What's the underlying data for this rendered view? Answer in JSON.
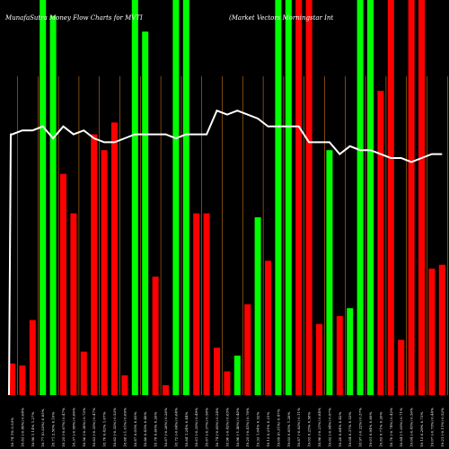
{
  "chart_data": {
    "type": "bar",
    "title": "MunafaSutra  Money Flow  Charts for MVTI",
    "subtitle": "(Market Vectors Morningstar Int",
    "background": "#000000",
    "colors": {
      "up": "#00ff00",
      "down": "#ff0000",
      "line": "#ffffff",
      "grid": "#c87814"
    },
    "ylim": [
      0,
      100
    ],
    "categories": [
      "Fri 11 Nov 2016",
      "Thu 10 Nov 2016",
      "Wed 09 Nov 2016",
      "Tue 08 Nov 2016",
      "Mon 07 Nov 2016",
      "Fri 04 Nov 2016",
      "Thu 03 Nov 2016",
      "Wed 02 Nov 2016",
      "Tue 01 Nov 2016",
      "Mon 31 Oct 2016",
      "Fri 28 Oct 2016",
      "Thu 27 Oct 2016",
      "Wed 26 Oct 2016",
      "Tue 25 Oct 2016",
      "Mon 24 Oct 2016",
      "Fri 21 Oct 2016",
      "Thu 20 Oct 2016",
      "Wed 19 Oct 2016",
      "Tue 18 Oct 2016",
      "Mon 17 Oct 2016",
      "Fri 14 Oct 2016",
      "Thu 13 Oct 2016",
      "Wed 12 Oct 2016",
      "Tue 11 Oct 2016",
      "Mon 10 Oct 2016",
      "Fri 07 Oct 2016",
      "Thu 06 Oct 2016",
      "Wed 05 Oct 2016",
      "Tue 04 Oct 2016",
      "Mon 03 Oct 2016",
      "Fri 30 Sep 2016",
      "Thu 29 Sep 2016",
      "Wed 28 Sep 2016",
      "Tue 27 Sep 2016",
      "Mon 26 Sep 2016",
      "Fri 23 Sep 2016",
      "Thu 22 Sep 2016",
      "Wed 21 Sep 2016",
      "Tue 20 Sep 2016",
      "Mon 19 Sep 2016",
      "Fri 16 Sep 2016",
      "Thu 15 Sep 2016",
      "Wed 14 Sep 2016"
    ],
    "tick_labels": [
      "18.74 1% 0.53%",
      "18.83 (-0.80%) 0.64%",
      "18.98 1.14% 1.27%",
      "18.77 (0.33%) 0.85%",
      "18.71 2.50% 0.16%",
      "18.25 (-0.67%) 0.47%",
      "18.37 (-0.99%) 0.60%",
      "18.56 (-0.38%) 0.72%",
      "18.63 (-0.35%) 0.47%",
      "18.70 0.42% 1.07%",
      "18.62 (-0.32%) 0.53%",
      "18.68 (-1.01%) 0.69%",
      "18.87 0.05% 0.85%",
      "18.86 0.43% 0.48%",
      "18.78 0.60% 0.26%",
      "18.67 (-0.26%) 0.26%",
      "18.72 (-0.64%) 0.64%",
      "18.84 1.24% 0.44%",
      "18.61 (-0.35%) 0.49%",
      "18.67 (-0.37%) 0.56%",
      "18.74 (-0.85%) 0.24%",
      "18.90 (-0.42%) 0.63%",
      "18.98 (-1.40%) 0.40%",
      "19.25 (-0.41%) 0.76%",
      "19.33 1.04% 0.52%",
      "19.13 0.21% 0.31%",
      "19.09 (0.31%) 0.47%",
      "19.03 0.85% 1.28%",
      "18.87 (-0.83%) 0.11%",
      "19.03 0.25% 0.58%",
      "18.98 (-0.21%) 0.84%",
      "19.02 (-0.94%) 0.97%",
      "19.20 0.84% 0.42%",
      "19.04 0.37% 0.53%",
      "18.97 (-0.22%) 0.37%",
      "19.01 0.94% 0.68%",
      "18.83 0.71% 0.26%",
      "18.70 (-0.74%) 0.42%",
      "18.84 (-1.05%) 0.71%",
      "19.04 (-0.45%) 0.50%",
      "19.13 0.29% 0.73%",
      "19.07 (-0.73%) 0.44%",
      "19.21 (-0.11%) 0.52%"
    ],
    "series": [
      {
        "direction": [
          "down",
          "down",
          "down",
          "up",
          "up",
          "down",
          "down",
          "down",
          "down",
          "down",
          "down",
          "down",
          "up",
          "up",
          "down",
          "down",
          "up",
          "up",
          "down",
          "down",
          "down",
          "down",
          "up",
          "down",
          "up",
          "down",
          "up",
          "up",
          "down",
          "down",
          "down",
          "up",
          "down",
          "up",
          "up",
          "up",
          "down",
          "down",
          "down",
          "down",
          "down",
          "down",
          "down"
        ],
        "values": [
          8,
          7.5,
          19,
          100,
          96,
          56,
          46,
          11,
          66,
          62,
          69,
          5,
          100,
          92,
          30,
          2.5,
          100,
          100,
          46,
          46,
          12,
          6,
          10,
          23,
          45,
          34,
          100,
          100,
          100,
          100,
          18,
          62,
          20,
          22,
          100,
          100,
          77,
          100,
          14,
          100,
          100,
          32,
          33
        ]
      },
      {
        "line": [
          66,
          67,
          67,
          68,
          65,
          68,
          66,
          67,
          65,
          64,
          64,
          65,
          66,
          66,
          66,
          66,
          65,
          66,
          66,
          66,
          72,
          71,
          72,
          71,
          70,
          68,
          68,
          68,
          68,
          64,
          64,
          64,
          61,
          63,
          62,
          62,
          61,
          60,
          60,
          59,
          60,
          61,
          61
        ]
      }
    ]
  }
}
